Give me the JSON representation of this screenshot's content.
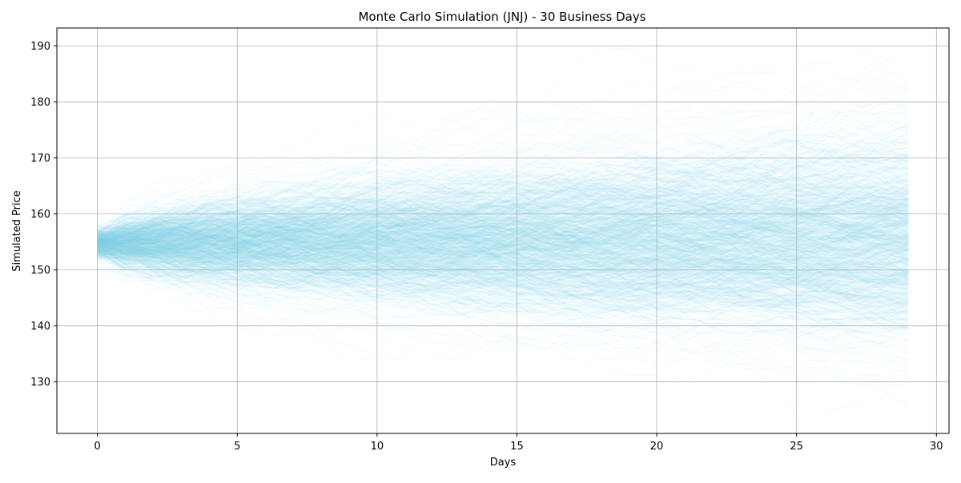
{
  "chart_data": {
    "type": "line",
    "title": "Monte Carlo Simulation (JNJ) - 30 Business Days",
    "xlabel": "Days",
    "ylabel": "Simulated Price",
    "xlim": [
      -1.45,
      30.45
    ],
    "ylim": [
      120.8,
      193.2
    ],
    "xticks": [
      0,
      5,
      10,
      15,
      20,
      25,
      30
    ],
    "yticks": [
      130,
      140,
      150,
      160,
      170,
      180,
      190
    ],
    "grid": true,
    "line_color": "#87ceeb",
    "line_alpha": 0.05,
    "num_days": 30,
    "num_paths": 1000,
    "start_price": 154.7,
    "day0_range": [
      151,
      158
    ],
    "day29_range": [
      124.5,
      184.5
    ],
    "max_value_seen": 190,
    "min_value_seen": 123.5
  }
}
